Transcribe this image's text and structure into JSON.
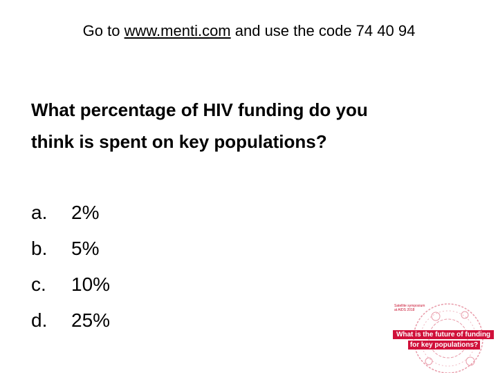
{
  "header": {
    "prefix": "Go to ",
    "link": "www.menti.com",
    "suffix": " and use the code 74 40 94"
  },
  "question": [
    "What percentage of HIV funding do you",
    "think is spent on key populations?"
  ],
  "options": [
    {
      "letter": "a.",
      "text": "2%"
    },
    {
      "letter": "b.",
      "text": "5%"
    },
    {
      "letter": "c.",
      "text": "10%"
    },
    {
      "letter": "d.",
      "text": "25%"
    }
  ],
  "logo": {
    "caption": [
      "Satellite symposium",
      "at AIDS 2018"
    ],
    "banner": [
      "What is the future of funding",
      "for key populations?"
    ]
  }
}
